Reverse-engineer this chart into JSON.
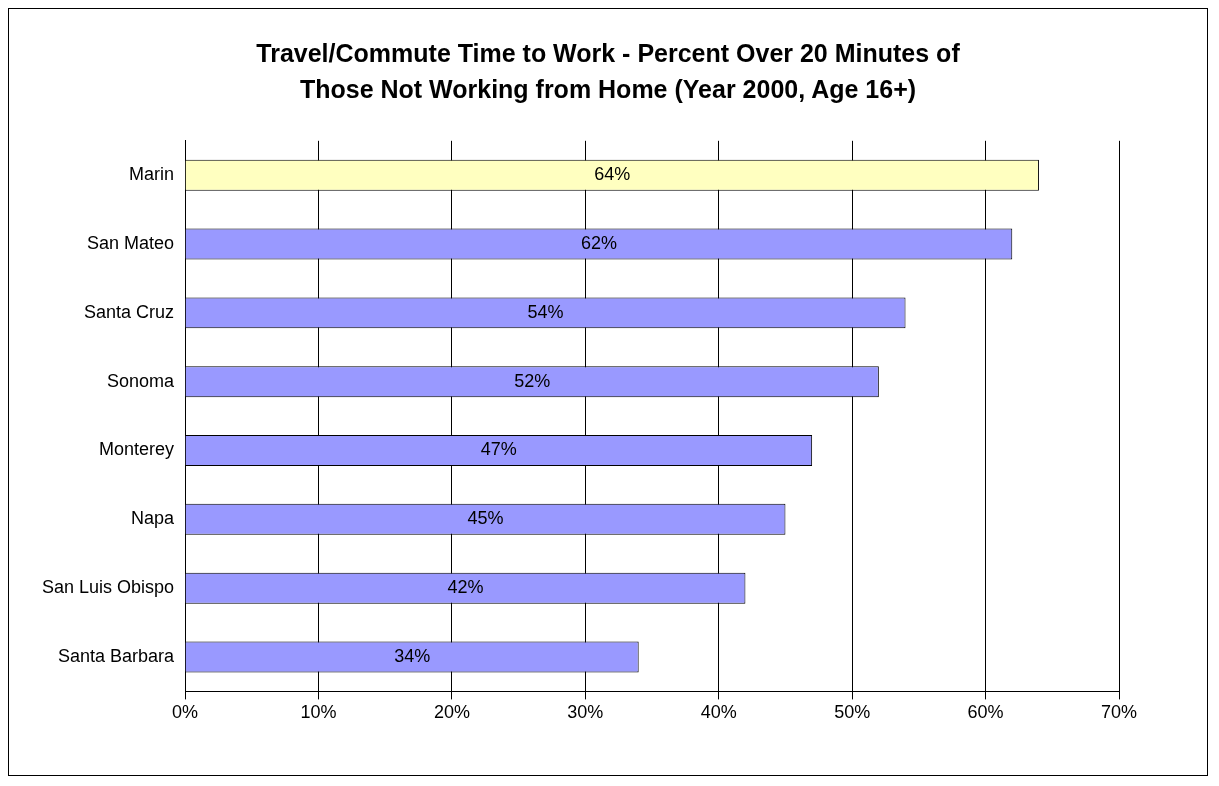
{
  "chart_data": {
    "type": "bar",
    "orientation": "horizontal",
    "title": "Travel/Commute Time to Work - Percent Over 20 Minutes of Those Not Working from Home (Year 2000, Age 16+)",
    "categories": [
      "Marin",
      "San Mateo",
      "Santa Cruz",
      "Sonoma",
      "Monterey",
      "Napa",
      "San Luis Obispo",
      "Santa Barbara"
    ],
    "values": [
      64,
      62,
      54,
      52,
      47,
      45,
      42,
      34
    ],
    "value_labels": [
      "64%",
      "62%",
      "54%",
      "52%",
      "47%",
      "45%",
      "42%",
      "34%"
    ],
    "colors": [
      "#ffffc0",
      "#9999ff",
      "#9999ff",
      "#9999ff",
      "#9999ff",
      "#9999ff",
      "#9999ff",
      "#9999ff"
    ],
    "xlim": [
      0,
      70
    ],
    "xticks": [
      {
        "value": 0,
        "label": "0%"
      },
      {
        "value": 10,
        "label": "10%"
      },
      {
        "value": 20,
        "label": "20%"
      },
      {
        "value": 30,
        "label": "30%"
      },
      {
        "value": 40,
        "label": "40%"
      },
      {
        "value": 50,
        "label": "50%"
      },
      {
        "value": 60,
        "label": "60%"
      },
      {
        "value": 70,
        "label": "70%"
      }
    ],
    "grid": "x",
    "legend": false
  }
}
